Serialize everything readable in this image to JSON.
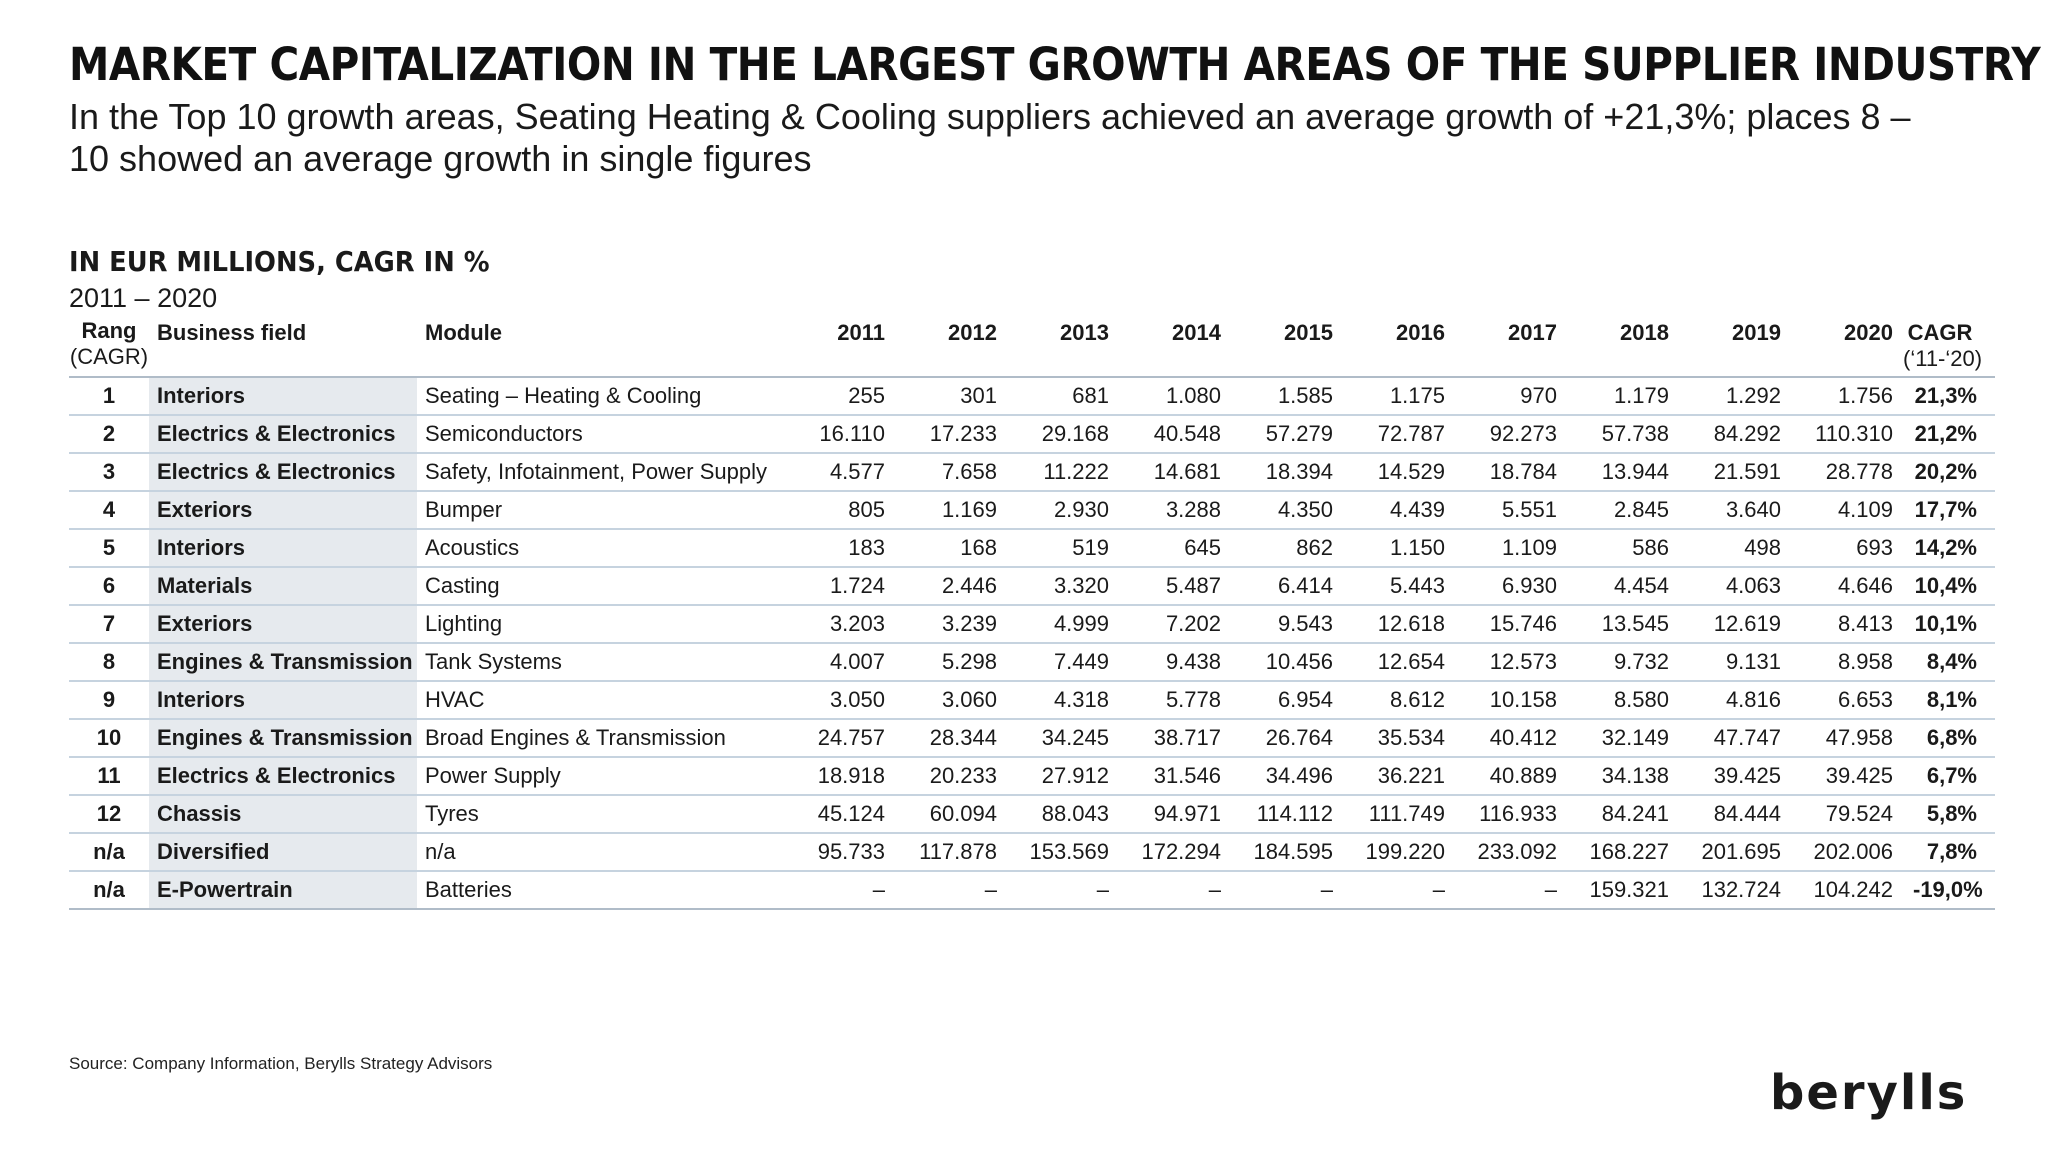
{
  "title": "MARKET CAPITALIZATION IN THE LARGEST GROWTH AREAS OF THE SUPPLIER INDUSTRY",
  "subtitle": "In the Top 10 growth areas, Seating Heating & Cooling suppliers achieved an average growth of +21,3%; places 8 – 10 showed an average growth in single figures",
  "unit_heading": "IN EUR MILLIONS, CAGR IN %",
  "period": "2011 – 2020",
  "table": {
    "headers": {
      "rank": "Rang",
      "rank_sub": "(CAGR)",
      "field": "Business field",
      "module": "Module",
      "years": [
        "2011",
        "2012",
        "2013",
        "2014",
        "2015",
        "2016",
        "2017",
        "2018",
        "2019",
        "2020"
      ],
      "cagr": "CAGR",
      "cagr_sub": "(‘11-‘20)"
    },
    "rows": [
      {
        "rank": "1",
        "field": "Interiors",
        "module": "Seating – Heating & Cooling",
        "values": [
          "255",
          "301",
          "681",
          "1.080",
          "1.585",
          "1.175",
          "970",
          "1.179",
          "1.292",
          "1.756"
        ],
        "cagr": "21,3%"
      },
      {
        "rank": "2",
        "field": "Electrics & Electronics",
        "module": "Semiconductors",
        "values": [
          "16.110",
          "17.233",
          "29.168",
          "40.548",
          "57.279",
          "72.787",
          "92.273",
          "57.738",
          "84.292",
          "110.310"
        ],
        "cagr": "21,2%"
      },
      {
        "rank": "3",
        "field": "Electrics & Electronics",
        "module": "Safety, Infotainment, Power Supply",
        "values": [
          "4.577",
          "7.658",
          "11.222",
          "14.681",
          "18.394",
          "14.529",
          "18.784",
          "13.944",
          "21.591",
          "28.778"
        ],
        "cagr": "20,2%"
      },
      {
        "rank": "4",
        "field": "Exteriors",
        "module": "Bumper",
        "values": [
          "805",
          "1.169",
          "2.930",
          "3.288",
          "4.350",
          "4.439",
          "5.551",
          "2.845",
          "3.640",
          "4.109"
        ],
        "cagr": "17,7%"
      },
      {
        "rank": "5",
        "field": "Interiors",
        "module": "Acoustics",
        "values": [
          "183",
          "168",
          "519",
          "645",
          "862",
          "1.150",
          "1.109",
          "586",
          "498",
          "693"
        ],
        "cagr": "14,2%"
      },
      {
        "rank": "6",
        "field": "Materials",
        "module": "Casting",
        "values": [
          "1.724",
          "2.446",
          "3.320",
          "5.487",
          "6.414",
          "5.443",
          "6.930",
          "4.454",
          "4.063",
          "4.646"
        ],
        "cagr": "10,4%"
      },
      {
        "rank": "7",
        "field": "Exteriors",
        "module": "Lighting",
        "values": [
          "3.203",
          "3.239",
          "4.999",
          "7.202",
          "9.543",
          "12.618",
          "15.746",
          "13.545",
          "12.619",
          "8.413"
        ],
        "cagr": "10,1%"
      },
      {
        "rank": "8",
        "field": "Engines & Transmission",
        "module": "Tank Systems",
        "values": [
          "4.007",
          "5.298",
          "7.449",
          "9.438",
          "10.456",
          "12.654",
          "12.573",
          "9.732",
          "9.131",
          "8.958"
        ],
        "cagr": "8,4%"
      },
      {
        "rank": "9",
        "field": "Interiors",
        "module": "HVAC",
        "values": [
          "3.050",
          "3.060",
          "4.318",
          "5.778",
          "6.954",
          "8.612",
          "10.158",
          "8.580",
          "4.816",
          "6.653"
        ],
        "cagr": "8,1%"
      },
      {
        "rank": "10",
        "field": "Engines & Transmission",
        "module": "Broad Engines & Transmission",
        "values": [
          "24.757",
          "28.344",
          "34.245",
          "38.717",
          "26.764",
          "35.534",
          "40.412",
          "32.149",
          "47.747",
          "47.958"
        ],
        "cagr": "6,8%"
      },
      {
        "rank": "11",
        "field": "Electrics & Electronics",
        "module": "Power Supply",
        "values": [
          "18.918",
          "20.233",
          "27.912",
          "31.546",
          "34.496",
          "36.221",
          "40.889",
          "34.138",
          "39.425",
          "39.425"
        ],
        "cagr": "6,7%"
      },
      {
        "rank": "12",
        "field": "Chassis",
        "module": "Tyres",
        "values": [
          "45.124",
          "60.094",
          "88.043",
          "94.971",
          "114.112",
          "111.749",
          "116.933",
          "84.241",
          "84.444",
          "79.524"
        ],
        "cagr": "5,8%"
      },
      {
        "rank": "n/a",
        "field": "Diversified",
        "module": "n/a",
        "values": [
          "95.733",
          "117.878",
          "153.569",
          "172.294",
          "184.595",
          "199.220",
          "233.092",
          "168.227",
          "201.695",
          "202.006"
        ],
        "cagr": "7,8%"
      },
      {
        "rank": "n/a",
        "field": "E-Powertrain",
        "module": "Batteries",
        "values": [
          "–",
          "–",
          "–",
          "–",
          "–",
          "–",
          "–",
          "159.321",
          "132.724",
          "104.242"
        ],
        "cagr": "-19,0%"
      }
    ]
  },
  "source": "Source: Company Information, Berylls Strategy Advisors",
  "logo": {
    "name": "berylls-logo",
    "text": "berylls",
    "color": "#1a1a1a"
  }
}
